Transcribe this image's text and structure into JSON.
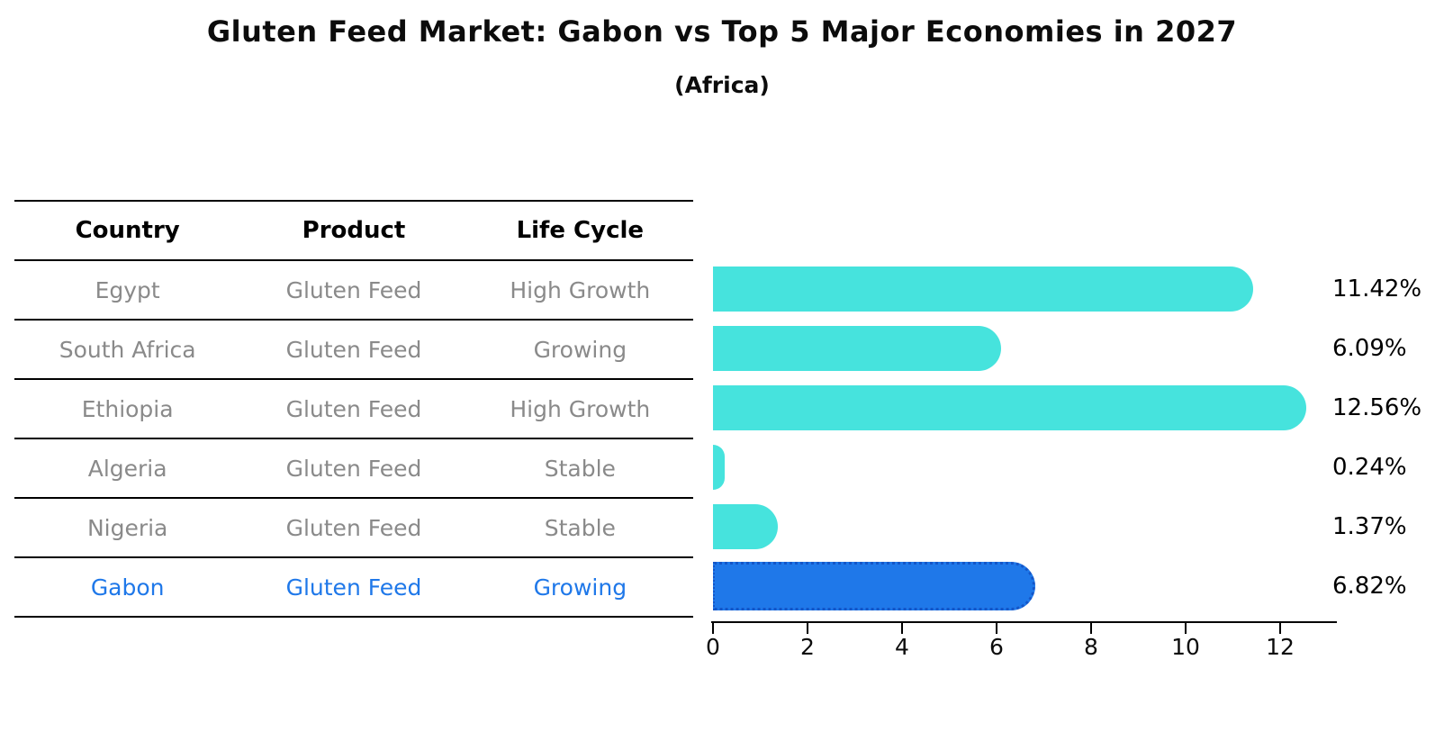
{
  "title": "Gluten Feed Market: Gabon vs Top 5 Major Economies in 2027",
  "subtitle": "(Africa)",
  "colors": {
    "bar": "#46E3DD",
    "highlight_bar": "#1F78E9",
    "highlight_bar_border": "#1456C8",
    "highlight_text": "#1F78E9",
    "row_text": "#8a8a8a",
    "header_text": "#000000",
    "value_text": "#000000",
    "axis": "#000000"
  },
  "table": {
    "headers": [
      "Country",
      "Product",
      "Life Cycle"
    ],
    "rows": [
      {
        "country": "Egypt",
        "product": "Gluten Feed",
        "life_cycle": "High Growth",
        "highlight": false
      },
      {
        "country": "South Africa",
        "product": "Gluten Feed",
        "life_cycle": "Growing",
        "highlight": false
      },
      {
        "country": "Ethiopia",
        "product": "Gluten Feed",
        "life_cycle": "High Growth",
        "highlight": false
      },
      {
        "country": "Algeria",
        "product": "Gluten Feed",
        "life_cycle": "Stable",
        "highlight": false
      },
      {
        "country": "Nigeria",
        "product": "Gluten Feed",
        "life_cycle": "Stable",
        "highlight": false
      },
      {
        "country": "Gabon",
        "product": "Gluten Feed",
        "life_cycle": "Growing",
        "highlight": true
      }
    ]
  },
  "chart_data": {
    "type": "bar",
    "orientation": "horizontal",
    "title": "Gluten Feed Market: Gabon vs Top 5 Major Economies in 2027",
    "subtitle": "(Africa)",
    "categories": [
      "Egypt",
      "South Africa",
      "Ethiopia",
      "Algeria",
      "Nigeria",
      "Gabon"
    ],
    "values": [
      11.42,
      6.09,
      12.56,
      0.24,
      1.37,
      6.82
    ],
    "value_labels": [
      "11.42%",
      "6.09%",
      "12.56%",
      "0.24%",
      "1.37%",
      "6.82%"
    ],
    "highlight_index": 5,
    "xlim": [
      0,
      13.2
    ],
    "x_ticks": [
      0,
      2,
      4,
      6,
      8,
      10,
      12
    ],
    "grid": false,
    "legend": false
  }
}
